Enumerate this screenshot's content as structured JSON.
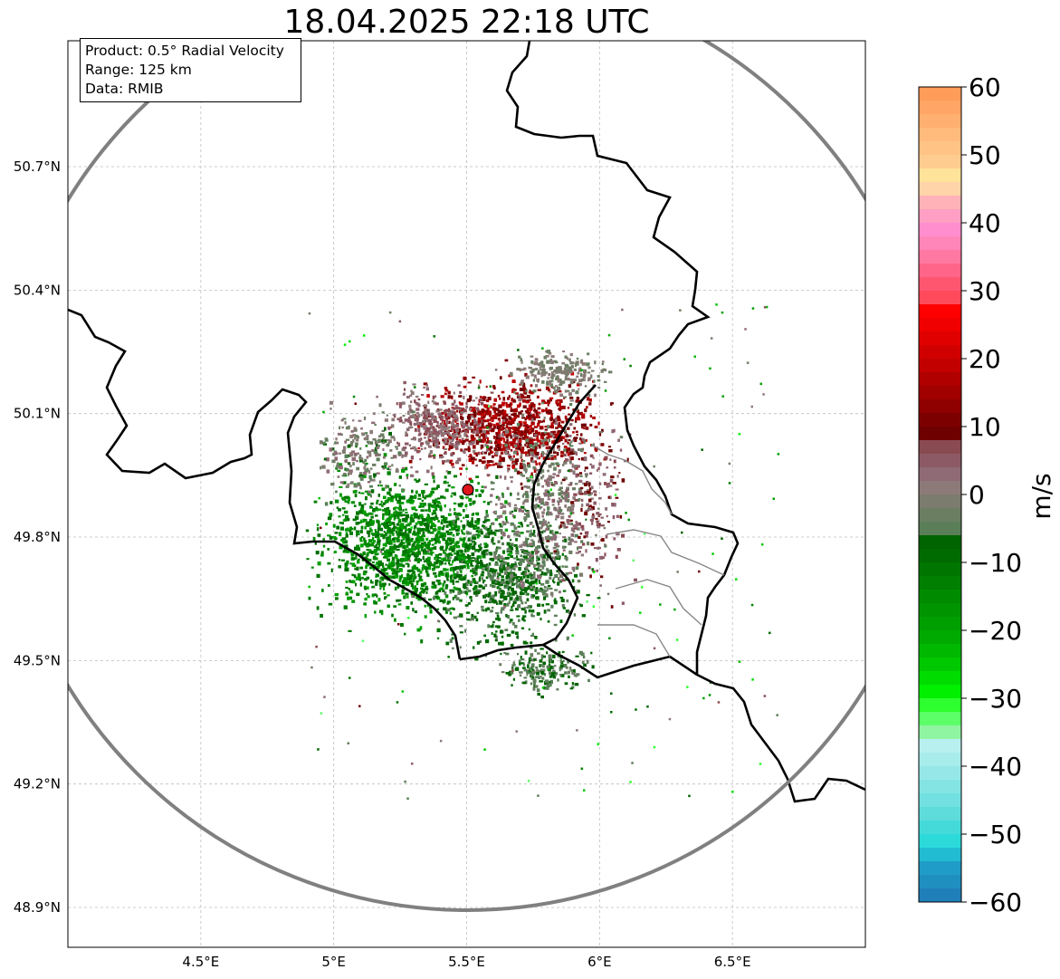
{
  "title": "18.04.2025 22:18 UTC",
  "info": {
    "product": "Product: 0.5° Radial Velocity",
    "range": "Range: 125 km",
    "source": "Data: RMIB"
  },
  "map": {
    "lon_range": [
      4.0,
      7.0
    ],
    "lat_range": [
      48.8,
      51.0
    ],
    "x_ticks": [
      {
        "value": 4.5,
        "label": "4.5°E"
      },
      {
        "value": 5.0,
        "label": "5°E"
      },
      {
        "value": 5.5,
        "label": "5.5°E"
      },
      {
        "value": 6.0,
        "label": "6°E"
      },
      {
        "value": 6.5,
        "label": "6.5°E"
      }
    ],
    "y_ticks": [
      {
        "value": 48.9,
        "label": "48.9°N"
      },
      {
        "value": 49.2,
        "label": "49.2°N"
      },
      {
        "value": 49.5,
        "label": "49.5°N"
      },
      {
        "value": 49.8,
        "label": "49.8°N"
      },
      {
        "value": 50.1,
        "label": "50.1°N"
      },
      {
        "value": 50.4,
        "label": "50.4°N"
      },
      {
        "value": 50.7,
        "label": "50.7°N"
      }
    ],
    "radar_site": {
      "lon": 5.505,
      "lat": 49.915
    },
    "range_ring_color": "#808080",
    "site_color": "#e0141b"
  },
  "colorbar": {
    "label": "m/s",
    "min": -60,
    "max": 60,
    "ticks": [
      {
        "value": 60,
        "label": "60"
      },
      {
        "value": 50,
        "label": "50"
      },
      {
        "value": 40,
        "label": "40"
      },
      {
        "value": 30,
        "label": "30"
      },
      {
        "value": 20,
        "label": "20"
      },
      {
        "value": 10,
        "label": "10"
      },
      {
        "value": 0,
        "label": "0"
      },
      {
        "value": -10,
        "label": "−10"
      },
      {
        "value": -20,
        "label": "−20"
      },
      {
        "value": -30,
        "label": "−30"
      },
      {
        "value": -40,
        "label": "−40"
      },
      {
        "value": -50,
        "label": "−50"
      },
      {
        "value": -60,
        "label": "−60"
      }
    ],
    "bands": [
      {
        "from": 58,
        "to": 60,
        "color": "#ff9c5a"
      },
      {
        "from": 56,
        "to": 58,
        "color": "#ffa565"
      },
      {
        "from": 54,
        "to": 56,
        "color": "#ffb070"
      },
      {
        "from": 52,
        "to": 54,
        "color": "#ffbb7c"
      },
      {
        "from": 50,
        "to": 52,
        "color": "#ffc385"
      },
      {
        "from": 48,
        "to": 50,
        "color": "#ffcc8f"
      },
      {
        "from": 46,
        "to": 48,
        "color": "#ffe39a"
      },
      {
        "from": 44,
        "to": 46,
        "color": "#ffd4a8"
      },
      {
        "from": 42,
        "to": 44,
        "color": "#ffb3b8"
      },
      {
        "from": 40,
        "to": 42,
        "color": "#ff9fc4"
      },
      {
        "from": 38,
        "to": 40,
        "color": "#ff8ecf"
      },
      {
        "from": 36,
        "to": 38,
        "color": "#ff86b8"
      },
      {
        "from": 34,
        "to": 36,
        "color": "#ff78a2"
      },
      {
        "from": 32,
        "to": 34,
        "color": "#ff6588"
      },
      {
        "from": 30,
        "to": 32,
        "color": "#ff5670"
      },
      {
        "from": 28,
        "to": 30,
        "color": "#ff4a5c"
      },
      {
        "from": 26,
        "to": 28,
        "color": "#ff0000"
      },
      {
        "from": 24,
        "to": 26,
        "color": "#f00000"
      },
      {
        "from": 22,
        "to": 24,
        "color": "#e00000"
      },
      {
        "from": 20,
        "to": 22,
        "color": "#d10000"
      },
      {
        "from": 18,
        "to": 20,
        "color": "#c20000"
      },
      {
        "from": 16,
        "to": 18,
        "color": "#b00000"
      },
      {
        "from": 14,
        "to": 16,
        "color": "#a00000"
      },
      {
        "from": 12,
        "to": 14,
        "color": "#8f0000"
      },
      {
        "from": 10,
        "to": 12,
        "color": "#7d0000"
      },
      {
        "from": 8,
        "to": 10,
        "color": "#6e0000"
      },
      {
        "from": 6,
        "to": 8,
        "color": "#8a4a52"
      },
      {
        "from": 4,
        "to": 6,
        "color": "#8c5a65"
      },
      {
        "from": 2,
        "to": 4,
        "color": "#8e6b75"
      },
      {
        "from": 0,
        "to": 2,
        "color": "#8d7a78"
      },
      {
        "from": -2,
        "to": 0,
        "color": "#7b7b6e"
      },
      {
        "from": -4,
        "to": -2,
        "color": "#6b7e62"
      },
      {
        "from": -6,
        "to": -4,
        "color": "#5a7f58"
      },
      {
        "from": -8,
        "to": -6,
        "color": "#006400"
      },
      {
        "from": -10,
        "to": -8,
        "color": "#006b00"
      },
      {
        "from": -12,
        "to": -10,
        "color": "#007500"
      },
      {
        "from": -14,
        "to": -12,
        "color": "#007f00"
      },
      {
        "from": -16,
        "to": -14,
        "color": "#008a00"
      },
      {
        "from": -18,
        "to": -16,
        "color": "#009400"
      },
      {
        "from": -20,
        "to": -18,
        "color": "#009f00"
      },
      {
        "from": -22,
        "to": -20,
        "color": "#00aa00"
      },
      {
        "from": -24,
        "to": -22,
        "color": "#00b800"
      },
      {
        "from": -26,
        "to": -24,
        "color": "#00c800"
      },
      {
        "from": -28,
        "to": -26,
        "color": "#00dc00"
      },
      {
        "from": -30,
        "to": -28,
        "color": "#00f000"
      },
      {
        "from": -32,
        "to": -30,
        "color": "#2eff2e"
      },
      {
        "from": -34,
        "to": -32,
        "color": "#5cff68"
      },
      {
        "from": -36,
        "to": -34,
        "color": "#8ff5a0"
      },
      {
        "from": -38,
        "to": -36,
        "color": "#b8f0f0"
      },
      {
        "from": -40,
        "to": -38,
        "color": "#a8ecec"
      },
      {
        "from": -42,
        "to": -40,
        "color": "#96e8e8"
      },
      {
        "from": -44,
        "to": -42,
        "color": "#84e4e4"
      },
      {
        "from": -46,
        "to": -44,
        "color": "#72e0e0"
      },
      {
        "from": -48,
        "to": -46,
        "color": "#5edcdc"
      },
      {
        "from": -50,
        "to": -48,
        "color": "#44dada"
      },
      {
        "from": -52,
        "to": -50,
        "color": "#2cdada"
      },
      {
        "from": -54,
        "to": -52,
        "color": "#22bcd2"
      },
      {
        "from": -56,
        "to": -54,
        "color": "#209cc8"
      },
      {
        "from": -58,
        "to": -56,
        "color": "#1f8fc0"
      },
      {
        "from": -60,
        "to": -58,
        "color": "#1f7fb8"
      }
    ]
  }
}
